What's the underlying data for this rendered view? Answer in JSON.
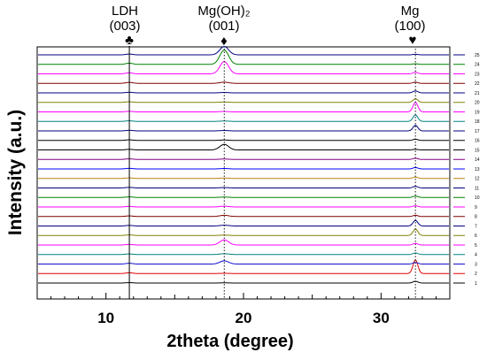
{
  "chart_data": {
    "type": "line",
    "xlabel": "2theta (degree)",
    "ylabel": "Intensity (a.u.)",
    "xlim": [
      5,
      35
    ],
    "x_ticks": [
      10,
      20,
      30
    ],
    "grid": false,
    "legend_position": "right",
    "annotations": [
      {
        "name": "LDH",
        "plane": "(003)",
        "marker": "♣",
        "x": 11.7,
        "line": "solid"
      },
      {
        "name": "Mg(OH)₂",
        "plane": "(001)",
        "marker": "♦",
        "x": 18.6,
        "line": "dotted"
      },
      {
        "name": "Mg",
        "plane": "(100)",
        "marker": "♥",
        "x": 32.5,
        "line": "dotted"
      }
    ],
    "series": [
      {
        "name": "1",
        "color": "#000000",
        "peaks": [
          0.1,
          0.05,
          0.45
        ]
      },
      {
        "name": "2",
        "color": "#e00000",
        "peaks": [
          0.2,
          0.05,
          3.4
        ]
      },
      {
        "name": "3",
        "color": "#1010cc",
        "peaks": [
          0.2,
          0.8,
          0.4
        ]
      },
      {
        "name": "4",
        "color": "#008080",
        "peaks": [
          0.15,
          0.2,
          0.4
        ]
      },
      {
        "name": "5",
        "color": "#ff00ff",
        "peaks": [
          0.15,
          1.3,
          0.4
        ]
      },
      {
        "name": "6",
        "color": "#808000",
        "peaks": [
          0.15,
          0.1,
          1.6
        ]
      },
      {
        "name": "7",
        "color": "#000080",
        "peaks": [
          0.15,
          0.2,
          1.4
        ]
      },
      {
        "name": "8",
        "color": "#800000",
        "peaks": [
          0.15,
          0.3,
          0.3
        ]
      },
      {
        "name": "9",
        "color": "#ff00ff",
        "peaks": [
          0.15,
          0.2,
          0.3
        ]
      },
      {
        "name": "10",
        "color": "#008000",
        "peaks": [
          0.15,
          0.1,
          0.35
        ]
      },
      {
        "name": "11",
        "color": "#000080",
        "peaks": [
          0.15,
          0.1,
          0.4
        ]
      },
      {
        "name": "12",
        "color": "#b8860b",
        "peaks": [
          0.15,
          0.1,
          0.35
        ]
      },
      {
        "name": "13",
        "color": "#0000ff",
        "peaks": [
          0.15,
          0.1,
          0.35
        ]
      },
      {
        "name": "14",
        "color": "#800080",
        "peaks": [
          0.15,
          0.1,
          0.3
        ]
      },
      {
        "name": "15",
        "color": "#000000",
        "peaks": [
          0.15,
          1.4,
          0.15
        ]
      },
      {
        "name": "16",
        "color": "#000000",
        "peaks": [
          0.15,
          0.1,
          0.3
        ]
      },
      {
        "name": "17",
        "color": "#000080",
        "peaks": [
          0.15,
          0.1,
          1.4
        ]
      },
      {
        "name": "18",
        "color": "#008080",
        "peaks": [
          0.15,
          0.1,
          1.6
        ]
      },
      {
        "name": "19",
        "color": "#ff00ff",
        "peaks": [
          0.15,
          0.1,
          2.4
        ]
      },
      {
        "name": "20",
        "color": "#808000",
        "peaks": [
          0.15,
          0.1,
          0.9
        ]
      },
      {
        "name": "21",
        "color": "#000080",
        "peaks": [
          0.15,
          0.1,
          0.5
        ]
      },
      {
        "name": "22",
        "color": "#800000",
        "peaks": [
          0.25,
          0.3,
          0.3
        ]
      },
      {
        "name": "23",
        "color": "#ff00ff",
        "peaks": [
          0.25,
          3.1,
          0.4
        ]
      },
      {
        "name": "24",
        "color": "#008000",
        "peaks": [
          0.3,
          3.6,
          0.15
        ]
      },
      {
        "name": "25",
        "color": "#000080",
        "peaks": [
          0.2,
          2.1,
          0.15
        ]
      }
    ]
  }
}
